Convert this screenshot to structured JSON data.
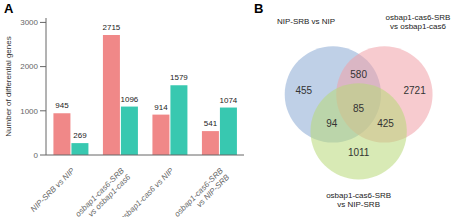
{
  "chart_data": [
    {
      "type": "bar",
      "title": "A",
      "categories": [
        "NIP-SRB vs NIP",
        "osbap1-cas6-SRB\nvs osbap1-cas6",
        "osbap1-cas6 vs NIP",
        "osbap1-cas6-SRB\nvs NIP-SRB"
      ],
      "series": [
        {
          "color": "#F08888",
          "values": [
            945,
            2715,
            914,
            541
          ]
        },
        {
          "color": "#38C8B0",
          "values": [
            269,
            1096,
            1579,
            1074
          ]
        }
      ],
      "ylabel": "Number of differential genes",
      "ylim": [
        0,
        3100
      ],
      "yticks": [
        0,
        1000,
        2000,
        3000
      ],
      "data_labels": true
    },
    {
      "type": "venn",
      "title": "B",
      "sets": [
        "NIP-SRB vs NIP",
        "osbap1-cas6-SRB\nvs osbap1-cas6",
        "osbap1-cas6-SRB\nvs NIP-SRB"
      ],
      "colors": [
        "#8AAAD4",
        "#F0A0A8",
        "#B8D878"
      ],
      "values": [
        455,
        580,
        2721,
        85,
        94,
        425,
        1011
      ]
    }
  ]
}
